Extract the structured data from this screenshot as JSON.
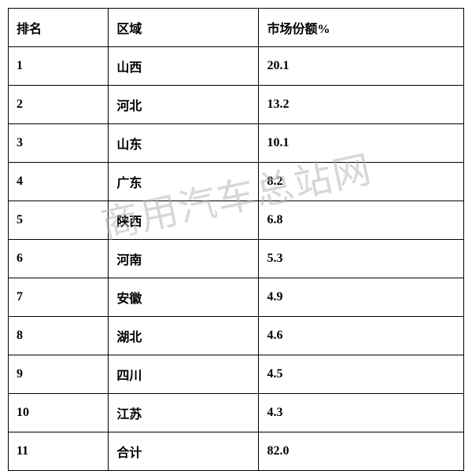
{
  "table": {
    "columns": [
      {
        "key": "rank",
        "label": "排名",
        "width": "22%"
      },
      {
        "key": "region",
        "label": "区域",
        "width": "33%"
      },
      {
        "key": "share",
        "label": "市场份额%",
        "width": "45%"
      }
    ],
    "rows": [
      {
        "rank": "1",
        "region": "山西",
        "share": "20.1"
      },
      {
        "rank": "2",
        "region": "河北",
        "share": "13.2"
      },
      {
        "rank": "3",
        "region": "山东",
        "share": "10.1"
      },
      {
        "rank": "4",
        "region": "广东",
        "share": "8.2"
      },
      {
        "rank": "5",
        "region": "陕西",
        "share": "6.8"
      },
      {
        "rank": "6",
        "region": "河南",
        "share": "5.3"
      },
      {
        "rank": "7",
        "region": "安徽",
        "share": "4.9"
      },
      {
        "rank": "8",
        "region": "湖北",
        "share": "4.6"
      },
      {
        "rank": "9",
        "region": "四川",
        "share": "4.5"
      },
      {
        "rank": "10",
        "region": "江苏",
        "share": "4.3"
      },
      {
        "rank": "11",
        "region": "合计",
        "share": "82.0"
      }
    ],
    "border_color": "#000000",
    "text_color": "#000000",
    "background_color": "#ffffff",
    "font_size": 16,
    "font_weight": "bold",
    "cell_padding": "12px 10px"
  },
  "watermark": {
    "text": "商用汽车总站网",
    "color": "#b0b0b0",
    "opacity": 0.5,
    "font_size": 48,
    "rotation": -12
  }
}
